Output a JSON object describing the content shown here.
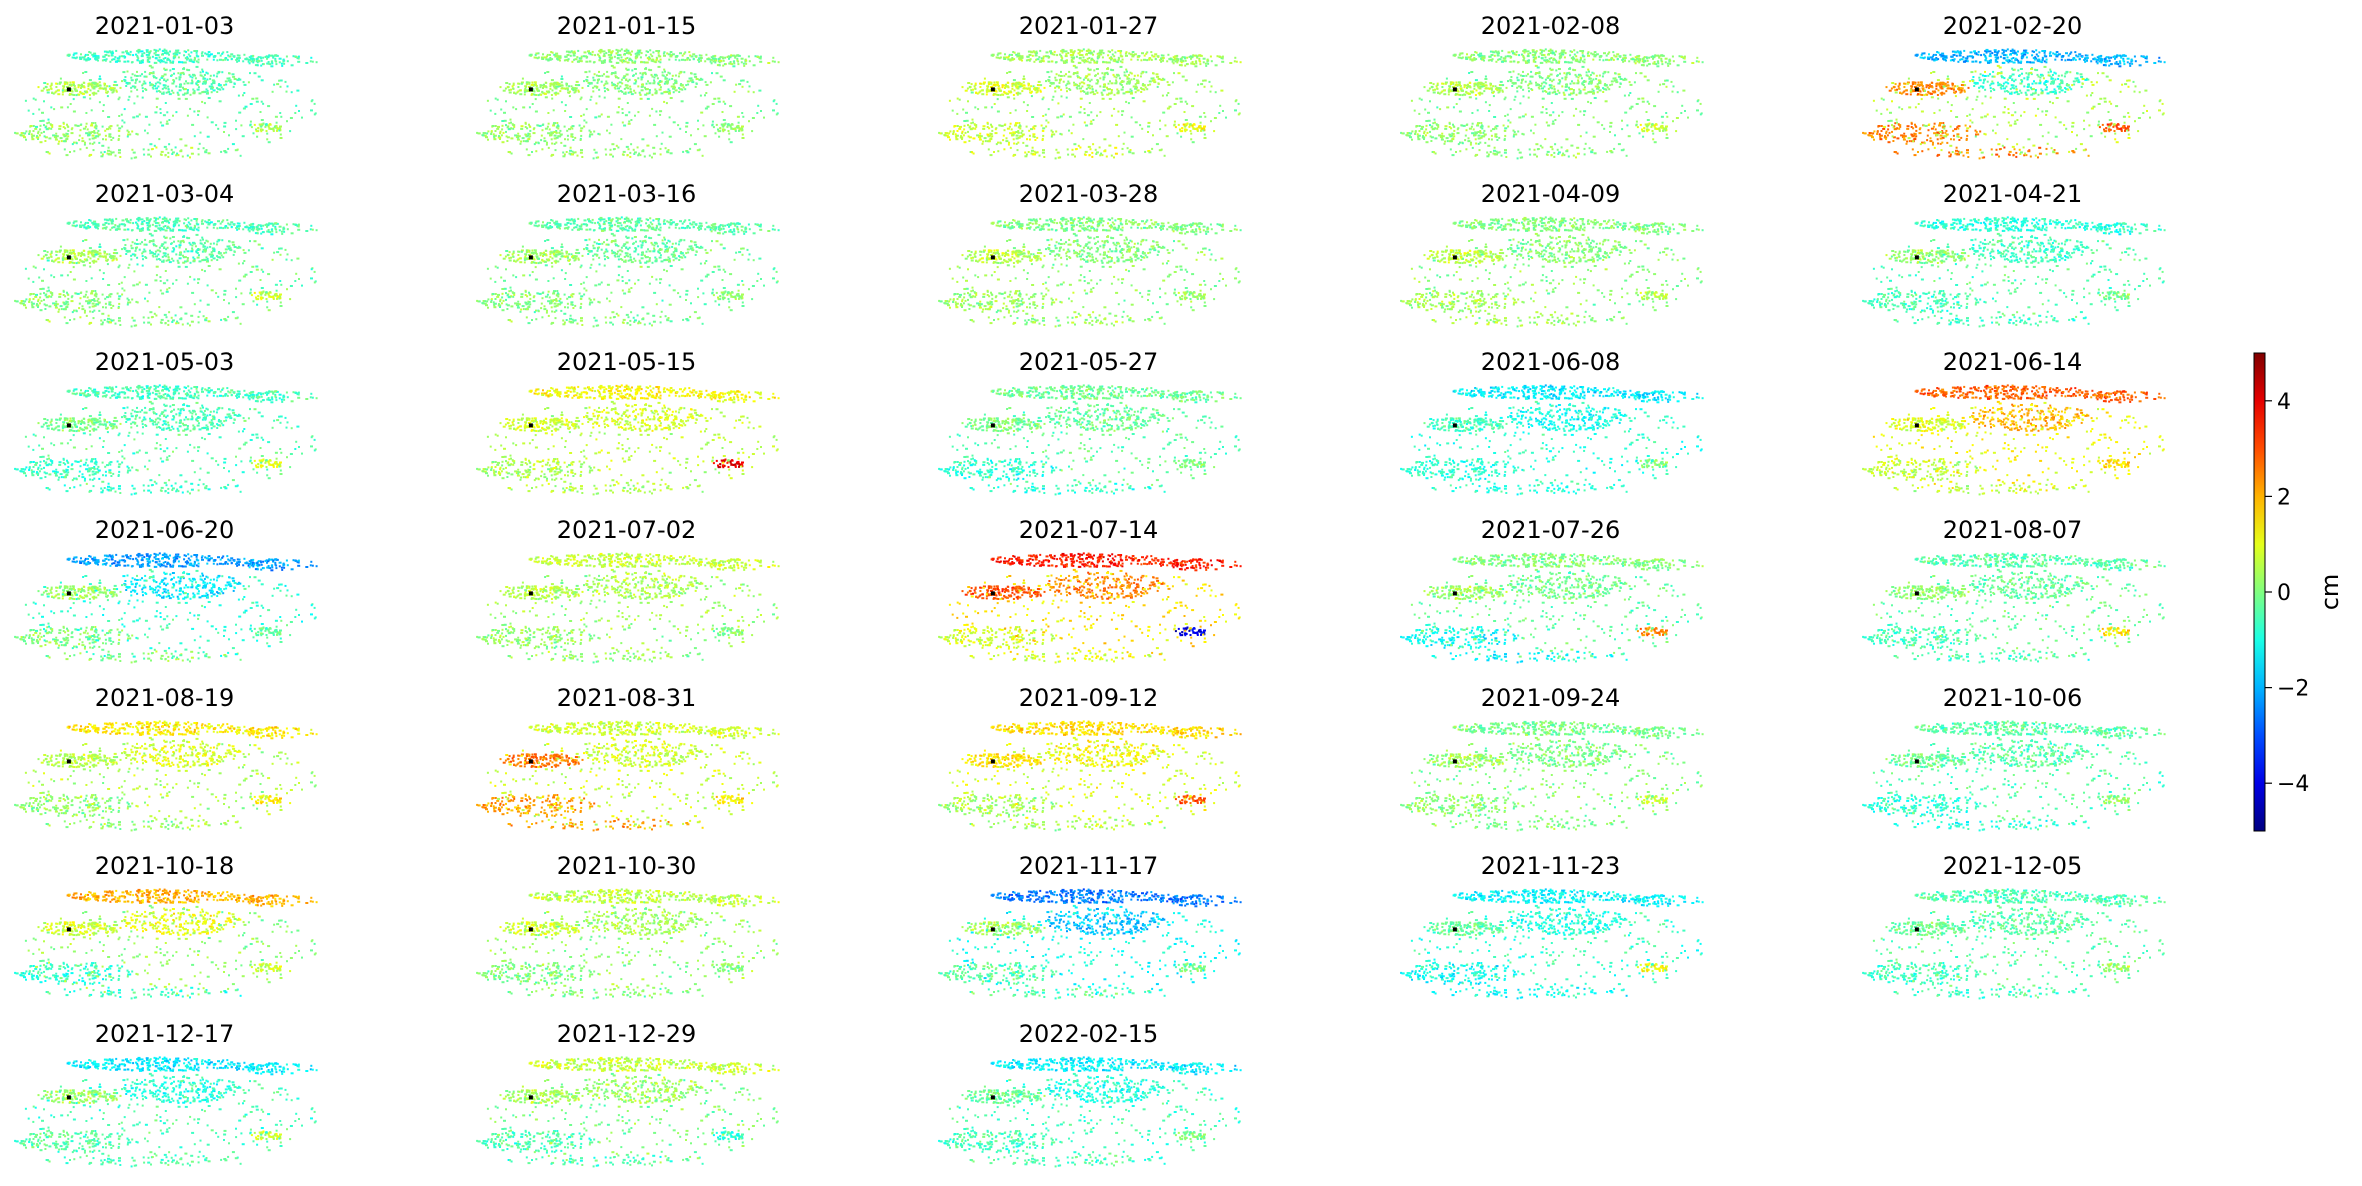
{
  "chart_data": {
    "type": "heatmap",
    "title": "",
    "layout": {
      "rows": 7,
      "cols": 5
    },
    "colormap": "jet",
    "colorbar": {
      "label": "cm",
      "range": [
        -5,
        5
      ],
      "ticks": [
        4,
        2,
        0,
        -2,
        -4
      ],
      "tick_labels": [
        "4",
        "2",
        "0",
        "−2",
        "−4"
      ]
    },
    "reference_point_color": "#000000",
    "panels": [
      {
        "date": "2021-01-03",
        "mean_cm": -0.3,
        "north": -0.6,
        "south": 0.3,
        "east": 0.4,
        "west": 0.5
      },
      {
        "date": "2021-01-15",
        "mean_cm": 0.0,
        "north": 0.1,
        "south": 0.2,
        "east": 0.2,
        "west": 0.4
      },
      {
        "date": "2021-01-27",
        "mean_cm": 0.3,
        "north": 0.3,
        "south": 0.8,
        "east": 1.2,
        "west": 0.9
      },
      {
        "date": "2021-02-08",
        "mean_cm": 0.0,
        "north": 0.1,
        "south": 0.2,
        "east": 0.8,
        "west": 0.5
      },
      {
        "date": "2021-02-20",
        "mean_cm": 0.5,
        "north": -2.0,
        "south": 2.5,
        "east": 3.0,
        "west": 2.4
      },
      {
        "date": "2021-03-04",
        "mean_cm": -0.2,
        "north": -0.5,
        "south": 0.2,
        "east": 0.8,
        "west": 0.4
      },
      {
        "date": "2021-03-16",
        "mean_cm": -0.1,
        "north": -0.4,
        "south": 0.1,
        "east": 0.3,
        "west": 0.4
      },
      {
        "date": "2021-03-28",
        "mean_cm": 0.1,
        "north": 0.0,
        "south": 0.3,
        "east": 0.2,
        "west": 0.6
      },
      {
        "date": "2021-04-09",
        "mean_cm": 0.1,
        "north": 0.0,
        "south": 0.4,
        "east": 0.6,
        "west": 0.6
      },
      {
        "date": "2021-04-21",
        "mean_cm": -0.4,
        "north": -0.9,
        "south": -0.6,
        "east": 0.0,
        "west": 0.2
      },
      {
        "date": "2021-05-03",
        "mean_cm": -0.4,
        "north": -0.6,
        "south": -0.7,
        "east": 1.0,
        "west": 0.0
      },
      {
        "date": "2021-05-15",
        "mean_cm": 0.6,
        "north": 1.2,
        "south": 0.4,
        "east": 4.0,
        "west": 0.8
      },
      {
        "date": "2021-05-27",
        "mean_cm": -0.3,
        "north": -0.2,
        "south": -0.9,
        "east": 0.0,
        "west": 0.0
      },
      {
        "date": "2021-06-08",
        "mean_cm": -0.8,
        "north": -1.4,
        "south": -0.8,
        "east": 0.0,
        "west": -0.6
      },
      {
        "date": "2021-06-14",
        "mean_cm": 1.2,
        "north": 2.8,
        "south": 0.6,
        "east": 1.6,
        "west": 0.9
      },
      {
        "date": "2021-06-20",
        "mean_cm": -0.7,
        "north": -2.2,
        "south": 0.1,
        "east": -0.2,
        "west": 0.3
      },
      {
        "date": "2021-07-02",
        "mean_cm": 0.3,
        "north": 0.7,
        "south": 0.2,
        "east": 0.0,
        "west": 0.5
      },
      {
        "date": "2021-07-14",
        "mean_cm": 1.5,
        "north": 3.5,
        "south": 0.8,
        "east": -4.0,
        "west": 3.0
      },
      {
        "date": "2021-07-26",
        "mean_cm": -0.3,
        "north": 0.0,
        "south": -1.2,
        "east": 2.5,
        "west": 0.3
      },
      {
        "date": "2021-08-07",
        "mean_cm": -0.2,
        "north": -0.4,
        "south": -0.6,
        "east": 1.5,
        "west": 0.2
      },
      {
        "date": "2021-08-19",
        "mean_cm": 0.5,
        "north": 1.4,
        "south": 0.1,
        "east": 1.5,
        "west": 0.6
      },
      {
        "date": "2021-08-31",
        "mean_cm": 0.8,
        "north": 0.8,
        "south": 2.2,
        "east": 1.4,
        "west": 2.6
      },
      {
        "date": "2021-09-12",
        "mean_cm": 0.9,
        "north": 1.6,
        "south": 0.3,
        "east": 3.0,
        "west": 1.5
      },
      {
        "date": "2021-09-24",
        "mean_cm": 0.0,
        "north": -0.1,
        "south": 0.1,
        "east": 0.8,
        "west": 0.4
      },
      {
        "date": "2021-10-06",
        "mean_cm": -0.4,
        "north": -0.4,
        "south": -0.9,
        "east": 0.3,
        "west": -0.2
      },
      {
        "date": "2021-10-18",
        "mean_cm": 0.2,
        "north": 2.0,
        "south": -0.8,
        "east": 0.8,
        "west": 0.9
      },
      {
        "date": "2021-10-30",
        "mean_cm": 0.2,
        "north": 0.6,
        "south": 0.0,
        "east": 0.0,
        "west": 0.8
      },
      {
        "date": "2021-11-17",
        "mean_cm": -1.1,
        "north": -2.6,
        "south": -0.3,
        "east": 0.0,
        "west": 0.3
      },
      {
        "date": "2021-11-23",
        "mean_cm": -0.7,
        "north": -1.3,
        "south": -1.2,
        "east": 1.2,
        "west": -0.3
      },
      {
        "date": "2021-12-05",
        "mean_cm": -0.3,
        "north": -0.5,
        "south": -0.7,
        "east": 0.4,
        "west": -0.2
      },
      {
        "date": "2021-12-17",
        "mean_cm": -0.5,
        "north": -1.4,
        "south": -0.4,
        "east": 0.8,
        "west": 0.3
      },
      {
        "date": "2021-12-29",
        "mean_cm": 0.0,
        "north": 0.7,
        "south": -0.6,
        "east": -1.0,
        "west": 0.4
      },
      {
        "date": "2022-02-15",
        "mean_cm": -0.6,
        "north": -1.4,
        "south": -0.5,
        "east": 0.0,
        "west": -0.2
      }
    ]
  }
}
